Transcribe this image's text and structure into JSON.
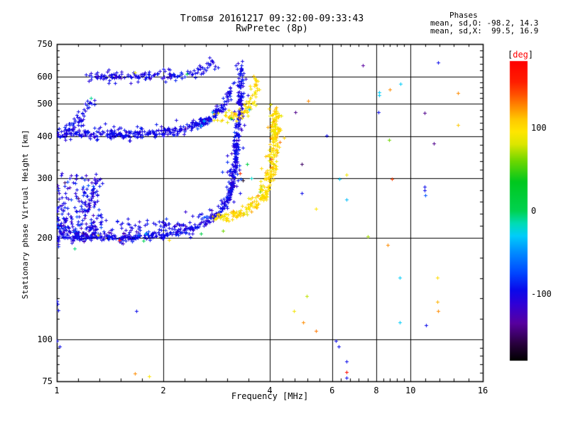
{
  "title": {
    "line1": "Tromsø 20161217 09:32:00-09:33:43",
    "line2": "RwPretec (8p)"
  },
  "stats": {
    "header": "Phases",
    "line_o": "mean, sd,O: -98.2, 14.3",
    "line_x": "mean, sd,X:  99.5, 16.9"
  },
  "axes": {
    "x_label": "Frequency [MHz]",
    "y_label": "Stationary phase Virtual Height [km]"
  },
  "colorbar": {
    "label_open": "[",
    "label_text": "deg",
    "label_close": "]"
  },
  "chart_data": {
    "type": "scatter",
    "title": "Tromsø 20161217 09:32:00-09:33:43",
    "subtitle": "RwPretec (8p)",
    "x_axis": {
      "label": "Frequency [MHz]",
      "scale": "log",
      "range": [
        1,
        16
      ],
      "ticks": [
        1,
        2,
        4,
        6,
        8,
        10,
        16
      ],
      "tick_labels": [
        "1",
        "2",
        "4",
        "6",
        "8",
        "10",
        "16"
      ],
      "grid": [
        2,
        4,
        6,
        8,
        10
      ]
    },
    "y_axis": {
      "label": "Stationary phase Virtual Height [km]",
      "scale": "log",
      "range": [
        75,
        750
      ],
      "ticks": [
        750,
        600,
        500,
        400,
        300,
        200,
        100,
        75
      ],
      "tick_labels": [
        "750",
        "600",
        "500",
        "400",
        "300",
        "200",
        "100",
        "75"
      ],
      "grid": [
        600,
        500,
        400,
        300,
        200,
        100
      ]
    },
    "color_axis": {
      "label": "[deg]",
      "range": [
        -180,
        180
      ],
      "ticks": [
        100,
        0,
        -100
      ],
      "tick_labels": [
        "100",
        "0",
        "-100"
      ],
      "colormap_stops": [
        [
          -180,
          "#000000"
        ],
        [
          -160,
          "#28003c"
        ],
        [
          -135,
          "#5800a0"
        ],
        [
          -112,
          "#3000d7"
        ],
        [
          -95,
          "#0a0aeb"
        ],
        [
          -75,
          "#0046ff"
        ],
        [
          -50,
          "#008cff"
        ],
        [
          -30,
          "#00cdfa"
        ],
        [
          -15,
          "#00dcb4"
        ],
        [
          0,
          "#00d250"
        ],
        [
          35,
          "#00c81e"
        ],
        [
          60,
          "#6ed700"
        ],
        [
          80,
          "#dce600"
        ],
        [
          95,
          "#ffe600"
        ],
        [
          110,
          "#ffc800"
        ],
        [
          125,
          "#ff8c00"
        ],
        [
          140,
          "#ff5000"
        ],
        [
          155,
          "#ff1e00"
        ],
        [
          180,
          "#ff0000"
        ]
      ]
    },
    "phase_stats": {
      "o_mean": -98.2,
      "o_sd": 14.3,
      "x_mean": 99.5,
      "x_sd": 16.9
    },
    "traces": [
      {
        "name": "one-hop-O-core",
        "phase": -98,
        "phase_sd": 6,
        "n": 430,
        "jx": 1.5,
        "jy": 2,
        "anchors": [
          [
            1.0,
            200
          ],
          [
            1.25,
            201
          ],
          [
            1.5,
            200
          ],
          [
            1.75,
            201
          ],
          [
            2.0,
            204
          ],
          [
            2.2,
            208
          ],
          [
            2.4,
            213
          ],
          [
            2.6,
            220
          ],
          [
            2.8,
            231
          ],
          [
            2.95,
            245
          ],
          [
            3.05,
            262
          ],
          [
            3.12,
            285
          ],
          [
            3.17,
            315
          ],
          [
            3.21,
            355
          ],
          [
            3.24,
            400
          ],
          [
            3.26,
            450
          ],
          [
            3.28,
            505
          ],
          [
            3.3,
            560
          ],
          [
            3.32,
            610
          ],
          [
            3.33,
            645
          ]
        ]
      },
      {
        "name": "one-hop-O-spread",
        "phase": -100,
        "phase_sd": 11,
        "n": 210,
        "jx": 6,
        "jy": 7,
        "anchors": [
          [
            1.0,
            202
          ],
          [
            1.5,
            202
          ],
          [
            2.0,
            206
          ],
          [
            2.4,
            215
          ],
          [
            2.7,
            226
          ],
          [
            2.95,
            247
          ],
          [
            3.08,
            272
          ],
          [
            3.16,
            310
          ],
          [
            3.21,
            360
          ],
          [
            3.25,
            420
          ],
          [
            3.28,
            490
          ],
          [
            3.31,
            570
          ],
          [
            3.33,
            635
          ]
        ]
      },
      {
        "name": "one-hop-X",
        "phase": 99,
        "phase_sd": 7,
        "n": 240,
        "jx": 3,
        "jy": 4,
        "anchors": [
          [
            2.79,
            228
          ],
          [
            3.0,
            231
          ],
          [
            3.3,
            235
          ],
          [
            3.6,
            248
          ],
          [
            3.8,
            262
          ],
          [
            3.95,
            285
          ],
          [
            4.05,
            320
          ],
          [
            4.1,
            370
          ],
          [
            4.13,
            430
          ],
          [
            4.15,
            480
          ]
        ]
      },
      {
        "name": "one-hop-X-spread",
        "phase": 101,
        "phase_sd": 13,
        "n": 70,
        "jx": 6,
        "jy": 6,
        "anchors": [
          [
            3.55,
            250
          ],
          [
            3.8,
            272
          ],
          [
            3.97,
            310
          ],
          [
            4.06,
            370
          ],
          [
            4.11,
            430
          ],
          [
            4.15,
            478
          ],
          [
            4.17,
            500
          ]
        ]
      },
      {
        "name": "two-hop-O",
        "phase": -98,
        "phase_sd": 6,
        "n": 300,
        "jx": 2,
        "jy": 3,
        "anchors": [
          [
            1.0,
            405
          ],
          [
            1.2,
            407
          ],
          [
            1.4,
            405
          ],
          [
            1.6,
            407
          ],
          [
            1.8,
            409
          ],
          [
            2.0,
            412
          ],
          [
            2.2,
            417
          ],
          [
            2.35,
            424
          ],
          [
            2.5,
            433
          ],
          [
            2.65,
            446
          ],
          [
            2.78,
            462
          ],
          [
            2.9,
            482
          ],
          [
            3.0,
            507
          ],
          [
            3.07,
            535
          ],
          [
            3.12,
            560
          ]
        ]
      },
      {
        "name": "two-hop-O-spread",
        "phase": -100,
        "phase_sd": 10,
        "n": 85,
        "jx": 5,
        "jy": 6,
        "anchors": [
          [
            1.0,
            408
          ],
          [
            1.5,
            408
          ],
          [
            2.0,
            414
          ],
          [
            2.4,
            428
          ],
          [
            2.7,
            455
          ],
          [
            2.95,
            495
          ],
          [
            3.1,
            550
          ]
        ]
      },
      {
        "name": "two-hop-left-spur",
        "phase": -98,
        "phase_sd": 8,
        "n": 42,
        "jx": 3,
        "jy": 4,
        "anchors": [
          [
            1.07,
            418
          ],
          [
            1.12,
            436
          ],
          [
            1.17,
            458
          ],
          [
            1.21,
            480
          ],
          [
            1.24,
            500
          ],
          [
            1.26,
            515
          ]
        ]
      },
      {
        "name": "two-hop-X",
        "phase": 100,
        "phase_sd": 9,
        "n": 80,
        "jx": 3,
        "jy": 4,
        "anchors": [
          [
            2.78,
            452
          ],
          [
            3.0,
            456
          ],
          [
            3.2,
            462
          ],
          [
            3.35,
            471
          ],
          [
            3.46,
            486
          ],
          [
            3.54,
            508
          ],
          [
            3.6,
            538
          ],
          [
            3.63,
            565
          ],
          [
            3.65,
            588
          ]
        ]
      },
      {
        "name": "three-hop-O",
        "phase": -98,
        "phase_sd": 7,
        "n": 125,
        "jx": 3,
        "jy": 4,
        "anchors": [
          [
            1.22,
            597
          ],
          [
            1.4,
            601
          ],
          [
            1.6,
            598
          ],
          [
            1.8,
            602
          ],
          [
            2.0,
            601
          ],
          [
            2.15,
            604
          ],
          [
            2.3,
            611
          ],
          [
            2.45,
            622
          ],
          [
            2.58,
            636
          ],
          [
            2.7,
            650
          ],
          [
            2.8,
            658
          ]
        ]
      },
      {
        "name": "three-hop-spread",
        "phase": -100,
        "phase_sd": 10,
        "n": 30,
        "jx": 6,
        "jy": 6,
        "anchors": [
          [
            1.3,
            600
          ],
          [
            1.7,
            602
          ],
          [
            2.1,
            604
          ],
          [
            2.4,
            618
          ],
          [
            2.65,
            645
          ]
        ]
      },
      {
        "name": "mid-layer-sparse",
        "phase": -97,
        "phase_sd": 10,
        "n": 48,
        "jx": 8,
        "jy": 5,
        "anchors": [
          [
            1.35,
            215
          ],
          [
            1.6,
            218
          ],
          [
            1.9,
            218
          ],
          [
            2.2,
            222
          ],
          [
            2.5,
            228
          ],
          [
            2.7,
            235
          ]
        ]
      },
      {
        "name": "cloud-spur",
        "phase": -98,
        "phase_sd": 10,
        "n": 35,
        "jx": 2.5,
        "jy": 3,
        "anchors": [
          [
            1.17,
            225
          ],
          [
            1.22,
            243
          ],
          [
            1.26,
            262
          ],
          [
            1.29,
            282
          ],
          [
            1.31,
            300
          ]
        ]
      }
    ],
    "clouds": [
      {
        "name": "left-E-spread-cloud",
        "phase": -100,
        "phase_sd": 14,
        "n": 215,
        "f_min": 1.0,
        "f_max": 1.33,
        "h_min": 205,
        "h_max": 315,
        "f_pow": 1.3,
        "h_pow": 1.7
      }
    ],
    "outliers": [
      [
        7.33,
        647,
        -135
      ],
      [
        11.96,
        660,
        -95
      ],
      [
        9.36,
        571,
        -30
      ],
      [
        8.74,
        549,
        125
      ],
      [
        8.15,
        539,
        -30
      ],
      [
        8.15,
        528,
        -30
      ],
      [
        13.6,
        536,
        125
      ],
      [
        5.14,
        508,
        125
      ],
      [
        4.73,
        472,
        -140
      ],
      [
        8.11,
        472,
        -95
      ],
      [
        10.95,
        469,
        -140
      ],
      [
        13.6,
        432,
        110
      ],
      [
        5.8,
        401,
        -95
      ],
      [
        8.68,
        390,
        60
      ],
      [
        11.65,
        380,
        -140
      ],
      [
        4.93,
        331,
        -150
      ],
      [
        6.6,
        308,
        90
      ],
      [
        6.3,
        298,
        -30
      ],
      [
        8.86,
        299,
        145
      ],
      [
        4.93,
        271,
        -95
      ],
      [
        10.95,
        283,
        -95
      ],
      [
        10.95,
        276,
        -95
      ],
      [
        11.0,
        267,
        -70
      ],
      [
        6.6,
        260,
        -35
      ],
      [
        5.4,
        244,
        95
      ],
      [
        7.57,
        202,
        70
      ],
      [
        8.62,
        190,
        125
      ],
      [
        9.3,
        152,
        -30
      ],
      [
        11.9,
        152,
        100
      ],
      [
        5.08,
        134,
        75
      ],
      [
        4.68,
        121,
        90
      ],
      [
        11.9,
        129,
        115
      ],
      [
        11.97,
        121,
        125
      ],
      [
        4.96,
        112,
        125
      ],
      [
        5.4,
        106,
        130
      ],
      [
        9.3,
        112,
        -30
      ],
      [
        11.06,
        110,
        -95
      ],
      [
        6.16,
        99,
        -95
      ],
      [
        6.27,
        95,
        -95
      ],
      [
        6.6,
        86,
        -95
      ],
      [
        6.6,
        80,
        170
      ],
      [
        6.6,
        77,
        -95
      ],
      [
        1.0,
        130,
        -95
      ],
      [
        1.005,
        127,
        -95
      ],
      [
        1.01,
        122,
        -95
      ],
      [
        1.68,
        121,
        -95
      ],
      [
        1.0,
        99,
        -95
      ],
      [
        1.02,
        95,
        -95
      ],
      [
        1.66,
        79,
        125
      ],
      [
        1.82,
        77.5,
        95
      ],
      [
        1.5,
        197,
        170
      ],
      [
        1.76,
        196,
        0
      ],
      [
        1.78,
        206,
        -30
      ],
      [
        1.12,
        186,
        -5
      ],
      [
        1.31,
        204,
        80
      ],
      [
        2.55,
        206,
        5
      ],
      [
        2.08,
        197,
        100
      ],
      [
        1.66,
        617,
        85
      ],
      [
        2.33,
        612,
        10
      ],
      [
        1.25,
        520,
        -10
      ],
      [
        2.55,
        430,
        -35
      ],
      [
        2.6,
        445,
        -30
      ],
      [
        2.75,
        470,
        -40
      ],
      [
        1.05,
        292,
        -150
      ],
      [
        1.15,
        262,
        -145
      ],
      [
        3.1,
        450,
        5
      ],
      [
        3.3,
        310,
        150
      ],
      [
        3.35,
        295,
        -170
      ],
      [
        3.15,
        240,
        120
      ],
      [
        2.95,
        210,
        60
      ],
      [
        3.45,
        330,
        10
      ],
      [
        3.55,
        300,
        -20
      ],
      [
        3.2,
        650,
        -95
      ],
      [
        3.5,
        480,
        -30
      ],
      [
        2.85,
        640,
        -95
      ]
    ]
  }
}
